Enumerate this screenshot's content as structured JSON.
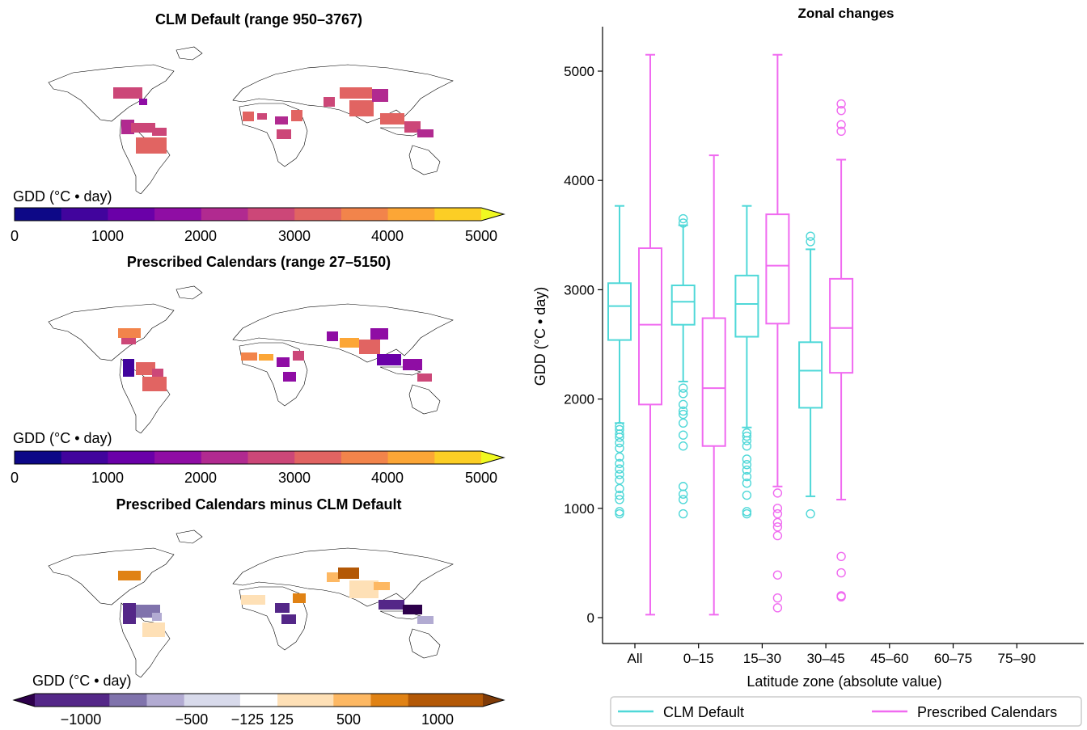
{
  "maps": [
    {
      "title": "CLM Default (range 950–3767)",
      "colorbar_label": "GDD (°C • day)",
      "colorbar_ticks": [
        "0",
        "1000",
        "2000",
        "3000",
        "4000",
        "5000"
      ],
      "colorbar_colors": [
        "#0d0887",
        "#41049d",
        "#6a00a8",
        "#8f0da4",
        "#b12a90",
        "#cc4778",
        "#e16462",
        "#f2844b",
        "#fca636",
        "#fcce25"
      ],
      "colorbar_extend": "max",
      "extend_color": "#f0f921"
    },
    {
      "title": "Prescribed Calendars (range 27–5150)",
      "colorbar_label": "GDD (°C • day)",
      "colorbar_ticks": [
        "0",
        "1000",
        "2000",
        "3000",
        "4000",
        "5000"
      ],
      "colorbar_colors": [
        "#0d0887",
        "#41049d",
        "#6a00a8",
        "#8f0da4",
        "#b12a90",
        "#cc4778",
        "#e16462",
        "#f2844b",
        "#fca636",
        "#fcce25"
      ],
      "colorbar_extend": "max",
      "extend_color": "#f0f921"
    },
    {
      "title": "Prescribed Calendars minus CLM Default",
      "colorbar_label": "GDD (°C • day)",
      "colorbar_ticks": [
        "−1000",
        "−500",
        "−125",
        "125",
        "500",
        "1000"
      ],
      "colorbar_colors": [
        "#542788",
        "#8073ac",
        "#b2abd2",
        "#d8daeb",
        "#ffffff",
        "#fee0b6",
        "#fdb863",
        "#e08214",
        "#b35806"
      ],
      "colorbar_extend": "both",
      "extend_colors": [
        "#2d004b",
        "#7f3b08"
      ]
    }
  ],
  "chart_data": {
    "type": "box",
    "title": "Zonal changes",
    "xlabel": "Latitude zone (absolute value)",
    "ylabel": "GDD (°C • day)",
    "categories": [
      "All",
      "0–15",
      "15–30",
      "30–45",
      "45–60",
      "60–75",
      "75–90"
    ],
    "ylim": [
      -230,
      5430
    ],
    "yticks": [
      0,
      1000,
      2000,
      3000,
      4000,
      5000
    ],
    "legend_position": "bottom",
    "series": [
      {
        "name": "CLM Default",
        "color": "#4fd8d8",
        "boxes": [
          {
            "category": "All",
            "whislo": 1780,
            "q1": 2540,
            "median": 2850,
            "q3": 3060,
            "whishi": 3767,
            "fliers": [
              950,
              970,
              1080,
              1120,
              1180,
              1260,
              1310,
              1360,
              1410,
              1470,
              1550,
              1600,
              1650,
              1680,
              1720,
              1750
            ]
          },
          {
            "category": "0–15",
            "whislo": 2160,
            "q1": 2680,
            "median": 2890,
            "q3": 3040,
            "whishi": 3590,
            "fliers": [
              950,
              1080,
              1130,
              1200,
              1570,
              1670,
              1780,
              1860,
              1890,
              1950,
              2050,
              2100,
              3610,
              3650
            ]
          },
          {
            "category": "15–30",
            "whislo": 1740,
            "q1": 2570,
            "median": 2870,
            "q3": 3130,
            "whishi": 3767,
            "fliers": [
              950,
              970,
              1120,
              1230,
              1290,
              1350,
              1400,
              1450,
              1570,
              1620,
              1660,
              1690
            ]
          },
          {
            "category": "30–45",
            "whislo": 1110,
            "q1": 1920,
            "median": 2260,
            "q3": 2520,
            "whishi": 3370,
            "fliers": [
              950,
              3440,
              3490
            ]
          }
        ]
      },
      {
        "name": "Prescribed Calendars",
        "color": "#f06af0",
        "boxes": [
          {
            "category": "All",
            "whislo": 27,
            "q1": 1950,
            "median": 2680,
            "q3": 3380,
            "whishi": 5150,
            "fliers": []
          },
          {
            "category": "0–15",
            "whislo": 27,
            "q1": 1570,
            "median": 2100,
            "q3": 2740,
            "whishi": 4230,
            "fliers": []
          },
          {
            "category": "15–30",
            "whislo": 1200,
            "q1": 2690,
            "median": 3220,
            "q3": 3690,
            "whishi": 5150,
            "fliers": [
              90,
              180,
              390,
              750,
              830,
              870,
              950,
              1000,
              1140
            ]
          },
          {
            "category": "30–45",
            "whislo": 1080,
            "q1": 2240,
            "median": 2650,
            "q3": 3100,
            "whishi": 4190,
            "fliers": [
              190,
              200,
              410,
              560,
              4450,
              4510,
              4640,
              4700
            ]
          }
        ]
      }
    ]
  }
}
